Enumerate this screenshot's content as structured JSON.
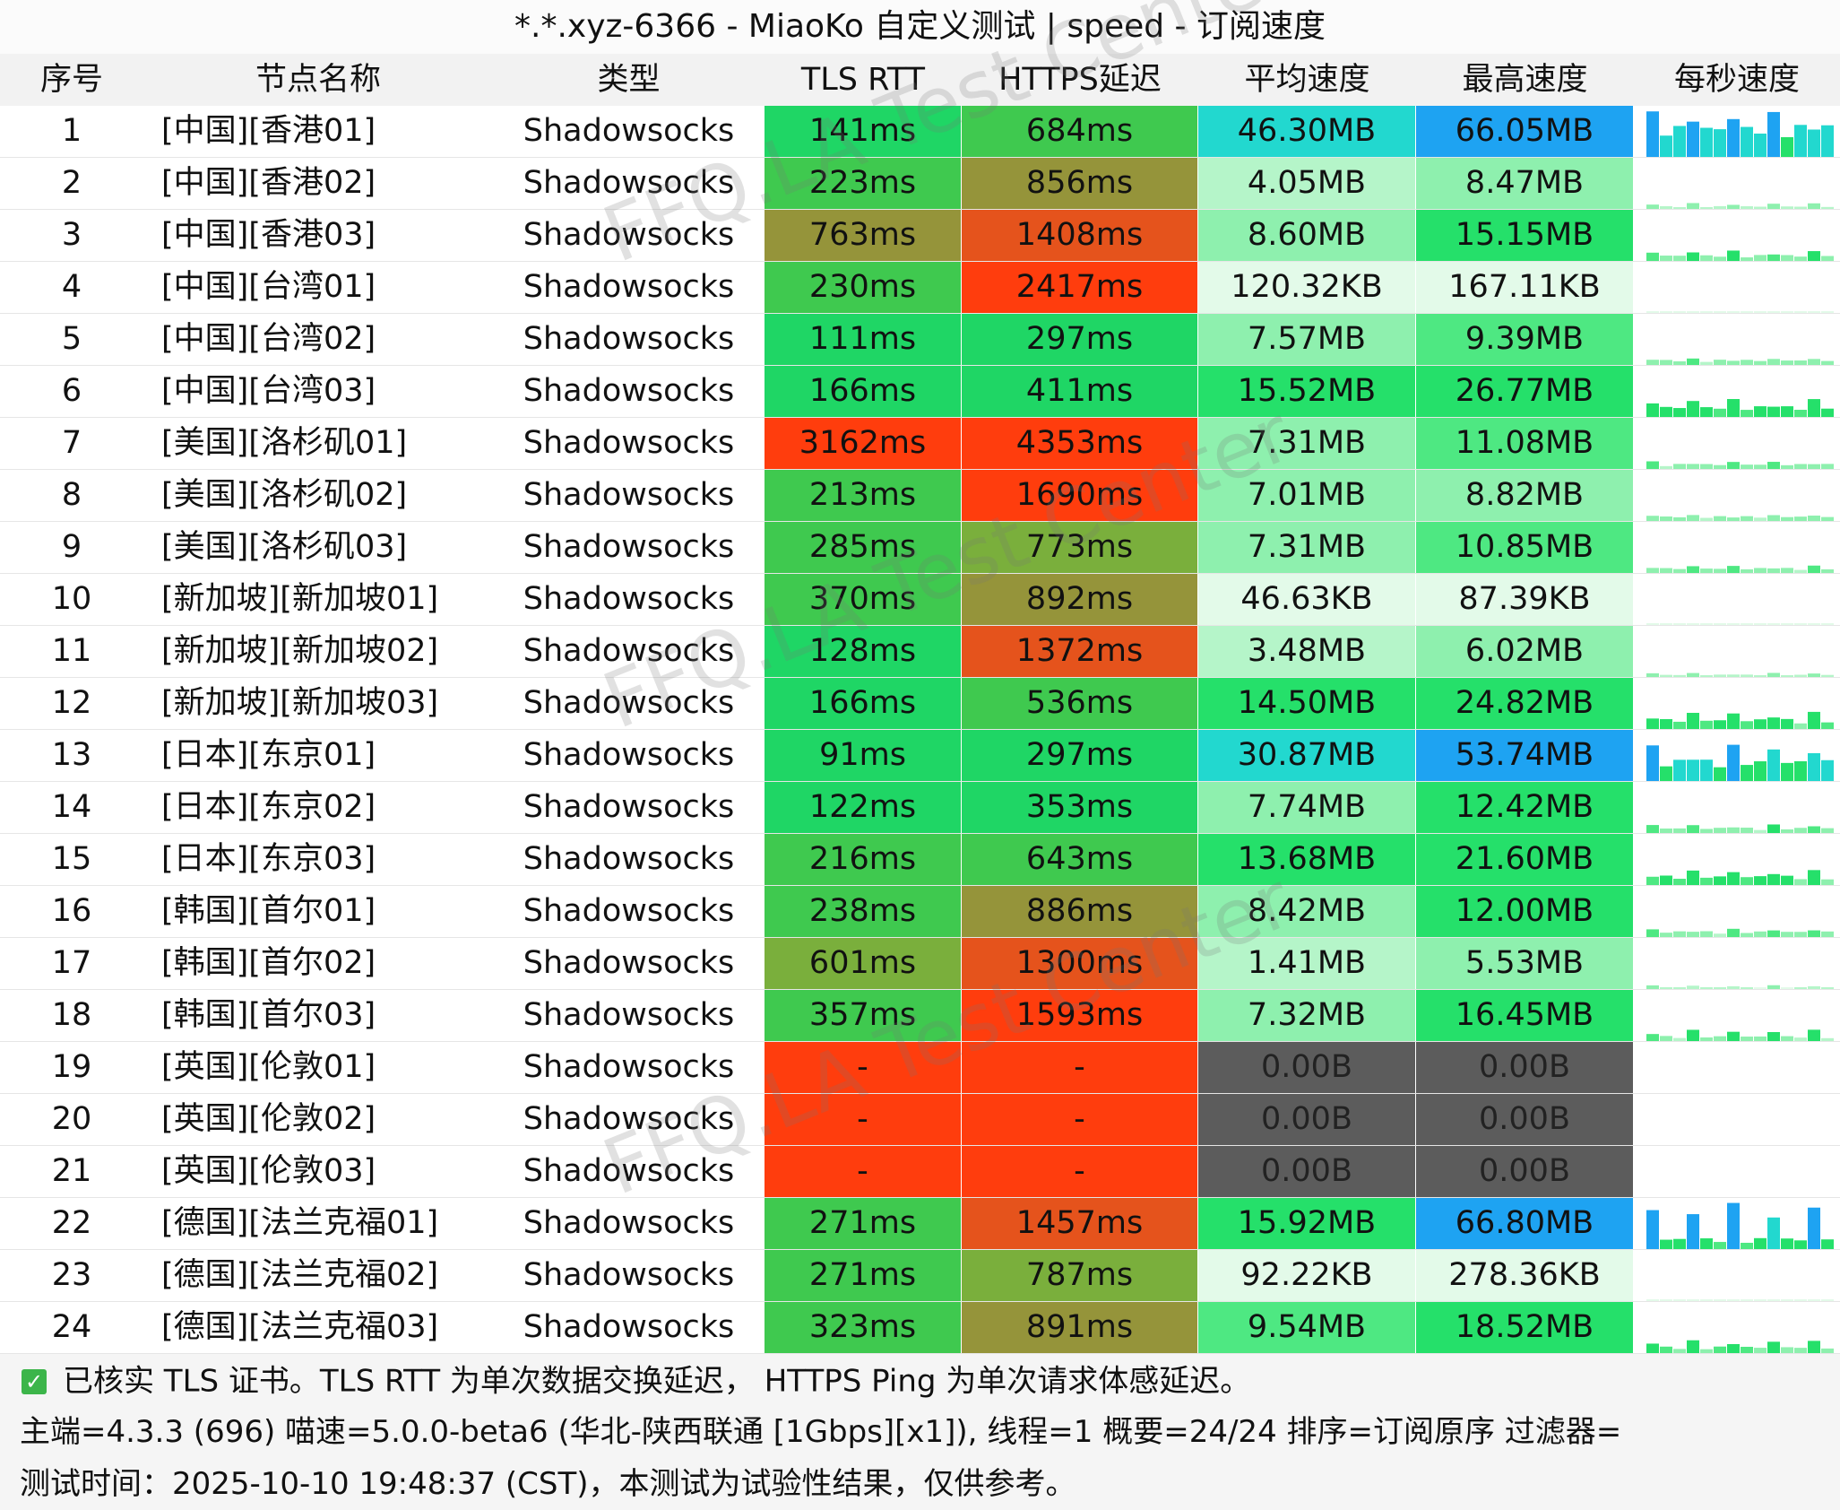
{
  "title": "*.*.xyz-6366 - MiaoKo 自定义测试 | speed - 订阅速度",
  "columns": [
    "序号",
    "节点名称",
    "类型",
    "TLS RTT",
    "HTTPS延迟",
    "平均速度",
    "最高速度",
    "每秒速度"
  ],
  "rows": [
    {
      "idx": "1",
      "name": "[中国][香港01]",
      "type": "Shadowsocks",
      "tls": "141ms",
      "https": "684ms",
      "avg": "46.30MB",
      "max": "66.05MB"
    },
    {
      "idx": "2",
      "name": "[中国][香港02]",
      "type": "Shadowsocks",
      "tls": "223ms",
      "https": "856ms",
      "avg": "4.05MB",
      "max": "8.47MB"
    },
    {
      "idx": "3",
      "name": "[中国][香港03]",
      "type": "Shadowsocks",
      "tls": "763ms",
      "https": "1408ms",
      "avg": "8.60MB",
      "max": "15.15MB"
    },
    {
      "idx": "4",
      "name": "[中国][台湾01]",
      "type": "Shadowsocks",
      "tls": "230ms",
      "https": "2417ms",
      "avg": "120.32KB",
      "max": "167.11KB"
    },
    {
      "idx": "5",
      "name": "[中国][台湾02]",
      "type": "Shadowsocks",
      "tls": "111ms",
      "https": "297ms",
      "avg": "7.57MB",
      "max": "9.39MB"
    },
    {
      "idx": "6",
      "name": "[中国][台湾03]",
      "type": "Shadowsocks",
      "tls": "166ms",
      "https": "411ms",
      "avg": "15.52MB",
      "max": "26.77MB"
    },
    {
      "idx": "7",
      "name": "[美国][洛杉矶01]",
      "type": "Shadowsocks",
      "tls": "3162ms",
      "https": "4353ms",
      "avg": "7.31MB",
      "max": "11.08MB"
    },
    {
      "idx": "8",
      "name": "[美国][洛杉矶02]",
      "type": "Shadowsocks",
      "tls": "213ms",
      "https": "1690ms",
      "avg": "7.01MB",
      "max": "8.82MB"
    },
    {
      "idx": "9",
      "name": "[美国][洛杉矶03]",
      "type": "Shadowsocks",
      "tls": "285ms",
      "https": "773ms",
      "avg": "7.31MB",
      "max": "10.85MB"
    },
    {
      "idx": "10",
      "name": "[新加坡][新加坡01]",
      "type": "Shadowsocks",
      "tls": "370ms",
      "https": "892ms",
      "avg": "46.63KB",
      "max": "87.39KB"
    },
    {
      "idx": "11",
      "name": "[新加坡][新加坡02]",
      "type": "Shadowsocks",
      "tls": "128ms",
      "https": "1372ms",
      "avg": "3.48MB",
      "max": "6.02MB"
    },
    {
      "idx": "12",
      "name": "[新加坡][新加坡03]",
      "type": "Shadowsocks",
      "tls": "166ms",
      "https": "536ms",
      "avg": "14.50MB",
      "max": "24.82MB"
    },
    {
      "idx": "13",
      "name": "[日本][东京01]",
      "type": "Shadowsocks",
      "tls": "91ms",
      "https": "297ms",
      "avg": "30.87MB",
      "max": "53.74MB"
    },
    {
      "idx": "14",
      "name": "[日本][东京02]",
      "type": "Shadowsocks",
      "tls": "122ms",
      "https": "353ms",
      "avg": "7.74MB",
      "max": "12.42MB"
    },
    {
      "idx": "15",
      "name": "[日本][东京03]",
      "type": "Shadowsocks",
      "tls": "216ms",
      "https": "643ms",
      "avg": "13.68MB",
      "max": "21.60MB"
    },
    {
      "idx": "16",
      "name": "[韩国][首尔01]",
      "type": "Shadowsocks",
      "tls": "238ms",
      "https": "886ms",
      "avg": "8.42MB",
      "max": "12.00MB"
    },
    {
      "idx": "17",
      "name": "[韩国][首尔02]",
      "type": "Shadowsocks",
      "tls": "601ms",
      "https": "1300ms",
      "avg": "1.41MB",
      "max": "5.53MB"
    },
    {
      "idx": "18",
      "name": "[韩国][首尔03]",
      "type": "Shadowsocks",
      "tls": "357ms",
      "https": "1593ms",
      "avg": "7.32MB",
      "max": "16.45MB"
    },
    {
      "idx": "19",
      "name": "[英国][伦敦01]",
      "type": "Shadowsocks",
      "tls": "-",
      "https": "-",
      "avg": "0.00B",
      "max": "0.00B"
    },
    {
      "idx": "20",
      "name": "[英国][伦敦02]",
      "type": "Shadowsocks",
      "tls": "-",
      "https": "-",
      "avg": "0.00B",
      "max": "0.00B"
    },
    {
      "idx": "21",
      "name": "[英国][伦敦03]",
      "type": "Shadowsocks",
      "tls": "-",
      "https": "-",
      "avg": "0.00B",
      "max": "0.00B"
    },
    {
      "idx": "22",
      "name": "[德国][法兰克福01]",
      "type": "Shadowsocks",
      "tls": "271ms",
      "https": "1457ms",
      "avg": "15.92MB",
      "max": "66.80MB"
    },
    {
      "idx": "23",
      "name": "[德国][法兰克福02]",
      "type": "Shadowsocks",
      "tls": "271ms",
      "https": "787ms",
      "avg": "92.22KB",
      "max": "278.36KB"
    },
    {
      "idx": "24",
      "name": "[德国][法兰克福03]",
      "type": "Shadowsocks",
      "tls": "323ms",
      "https": "891ms",
      "avg": "9.54MB",
      "max": "18.52MB"
    }
  ],
  "footer": {
    "line1": "已核实 TLS 证书。TLS RTT 为单次数据交换延迟， HTTPS Ping 为单次请求体感延迟。",
    "line2": "主端=4.3.3 (696) 喵速=5.0.0-beta6 (华北-陕西联通 [1Gbps][x1]), 线程=1 概要=24/24 排序=订阅原序 过滤器=",
    "line3": "测试时间：2025-10-10 19:48:37 (CST)，本测试为试验性结果，仅供参考。",
    "check_icon": "check-icon"
  },
  "watermark": "FFQ.LA Test Center",
  "colors": {
    "latency_best": "#1fd665",
    "latency_good": "#3fc94f",
    "latency_mid": "#7aaf3c",
    "latency_olive": "#95943a",
    "latency_orange": "#e5531c",
    "latency_red": "#ff3d0d",
    "speed_none": "#5c5c5c",
    "speed_cyan": "#22d8cf",
    "speed_blue": "#1ea3f2"
  }
}
